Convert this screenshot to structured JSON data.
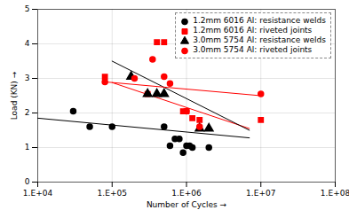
{
  "chart_data": {
    "type": "scatter",
    "xlabel": "Number of Cycles",
    "ylabel": "Load (KN)",
    "log": "x",
    "grid": true,
    "legend": "upper right",
    "xlim": [
      10000,
      100000000
    ],
    "xticks": [
      {
        "value": 10000,
        "label": "1.E+04"
      },
      {
        "value": 100000,
        "label": "1.E+05"
      },
      {
        "value": 1000000,
        "label": "1.E+06"
      },
      {
        "value": 10000000,
        "label": "1.E+07"
      },
      {
        "value": 100000000,
        "label": "1.E+08"
      }
    ],
    "ylim": [
      0,
      5
    ],
    "yticks": [
      0,
      1,
      2,
      3,
      4,
      5
    ],
    "series": [
      {
        "name": "1.2mm 6016 Al: resistance welds",
        "color": "black",
        "marker": "circle",
        "x": [
          30000,
          50000,
          100000,
          500000,
          600000,
          700000,
          800000,
          900000,
          1000000,
          1100000,
          1200000,
          2000000
        ],
        "values": [
          2.05,
          1.6,
          1.6,
          1.6,
          1.05,
          1.25,
          1.25,
          0.85,
          1.05,
          1.05,
          1.0,
          1.0
        ],
        "trend_x": [
          10000,
          7000000
        ],
        "trend_values": [
          1.85,
          1.28
        ]
      },
      {
        "name": "1.2mm 6016 Al: riveted joints",
        "color": "red",
        "marker": "square",
        "x": [
          80000,
          300000,
          400000,
          500000,
          900000,
          1000000,
          1200000,
          1500000,
          10000000
        ],
        "values": [
          3.05,
          2.55,
          4.05,
          4.05,
          2.05,
          2.05,
          1.85,
          1.8,
          1.8
        ],
        "trend_x": [
          100000,
          7000000
        ],
        "trend_values": [
          2.88,
          1.55
        ]
      },
      {
        "name": "3.0mm 5754 Al: resistance welds",
        "color": "black",
        "marker": "triangle",
        "x": [
          180000,
          300000,
          400000,
          500000,
          1500000,
          2000000
        ],
        "values": [
          3.05,
          2.55,
          2.55,
          2.55,
          1.55,
          1.55
        ],
        "trend_x": [
          100000,
          7000000
        ],
        "trend_values": [
          3.5,
          1.5
        ]
      },
      {
        "name": "3.0mm 5754 Al: riveted joints",
        "color": "red",
        "marker": "circle",
        "x": [
          80000,
          200000,
          350000,
          500000,
          600000,
          1000000,
          1500000,
          10000000
        ],
        "values": [
          2.9,
          3.0,
          3.55,
          3.05,
          2.85,
          2.05,
          1.6,
          2.55
        ],
        "trend_x": [
          80000,
          10000000
        ],
        "trend_values": [
          2.9,
          2.5
        ]
      }
    ]
  }
}
